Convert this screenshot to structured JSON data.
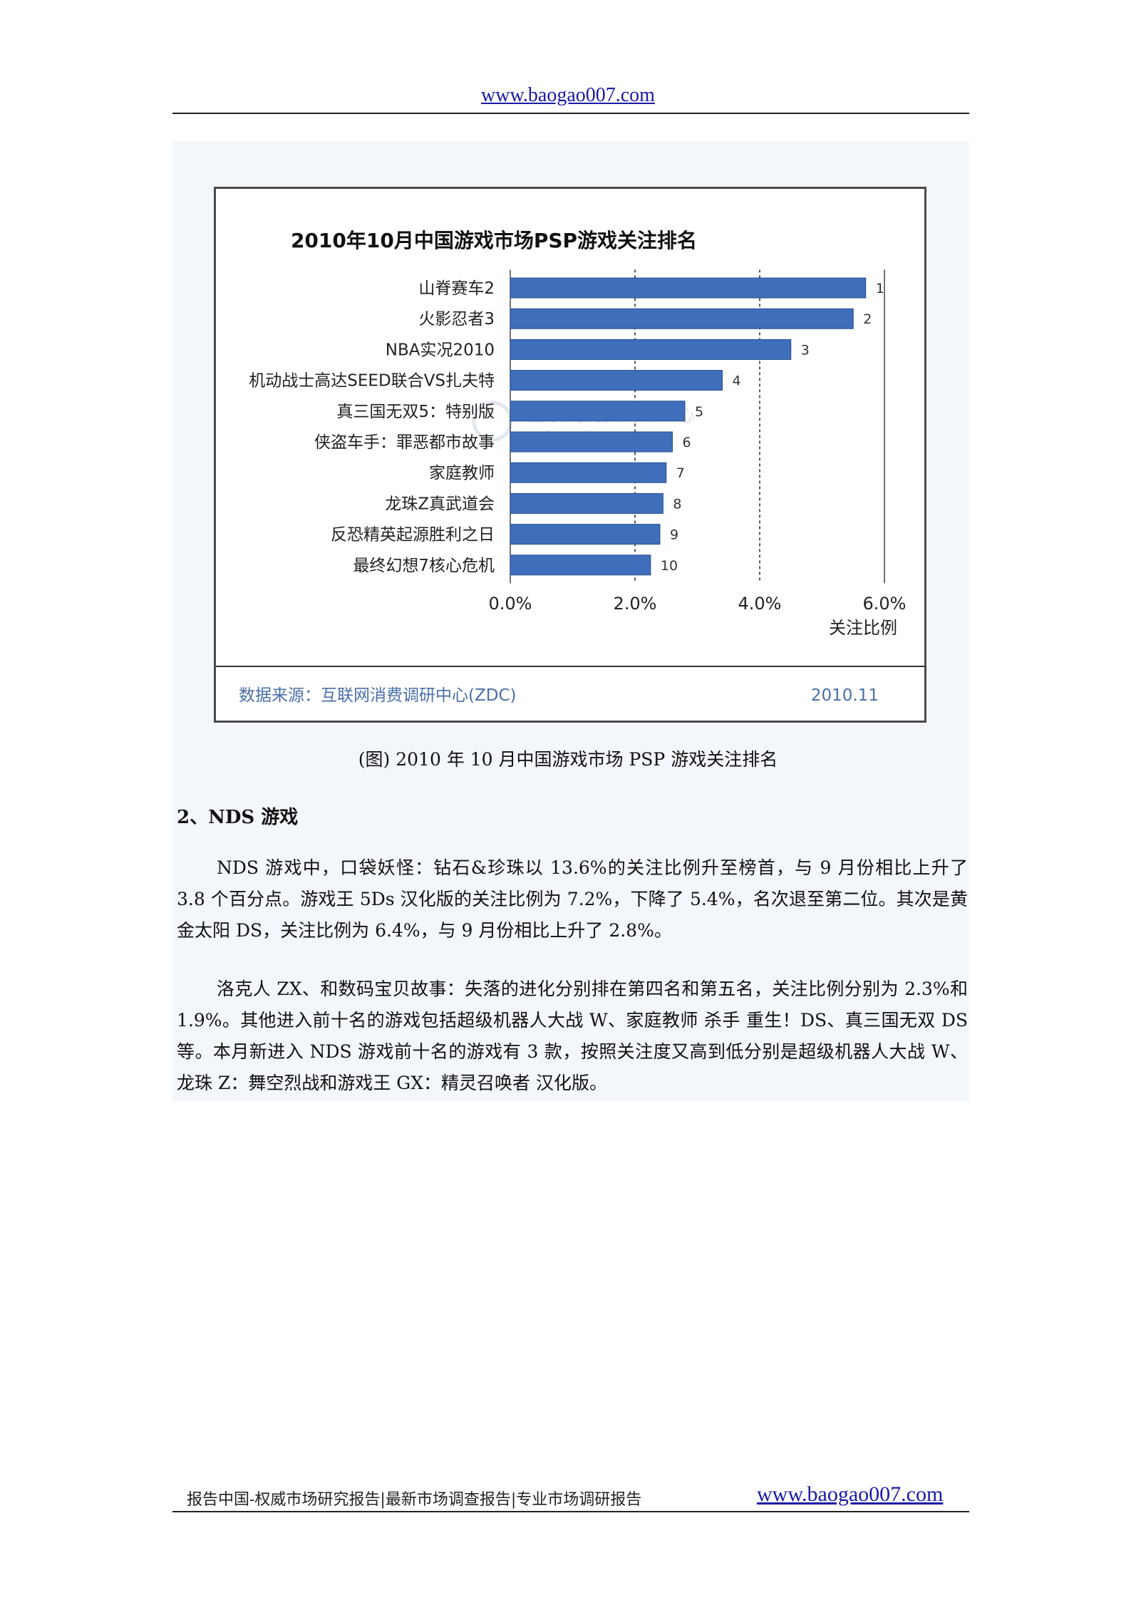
{
  "header": {
    "url": "www.baogao007.com"
  },
  "chart_data": {
    "type": "bar",
    "orientation": "horizontal",
    "title": "2010年10月中国游戏市场PSP游戏关注排名",
    "categories": [
      "山脊赛车2",
      "火影忍者3",
      "NBA实况2010",
      "机动战士高达SEED联合VS扎夫特",
      "真三国无双5：特别版",
      "侠盗车手：罪恶都市故事",
      "家庭教师",
      "龙珠Z真武道会",
      "反恐精英起源胜利之日",
      "最终幻想7核心危机"
    ],
    "values": [
      5.7,
      5.5,
      4.5,
      3.4,
      2.8,
      2.6,
      2.5,
      2.45,
      2.4,
      2.25
    ],
    "data_labels": [
      "1",
      "2",
      "3",
      "4",
      "5",
      "6",
      "7",
      "8",
      "9",
      "10"
    ],
    "xlabel": "关注比例",
    "xlim": [
      0,
      6
    ],
    "xticks": [
      "0.0%",
      "2.0%",
      "4.0%",
      "6.0%"
    ],
    "gridlines": "dashed vertical at 2.0% and 4.0%",
    "bar_color": "#3f6fba",
    "source": "数据来源：互联网消费调研中心(ZDC)",
    "date": "2010.11",
    "watermark": {
      "line1": "互联网消费调研中心",
      "line2": "zdc.zol.com.cn"
    }
  },
  "caption": "(图) 2010 年 10 月中国游戏市场 PSP 游戏关注排名",
  "section_heading": "2、NDS 游戏",
  "paragraphs": [
    "NDS 游戏中，口袋妖怪：钻石&珍珠以 13.6%的关注比例升至榜首，与 9 月份相比上升了 3.8 个百分点。游戏王 5Ds 汉化版的关注比例为 7.2%，下降了 5.4%，名次退至第二位。其次是黄金太阳 DS，关注比例为 6.4%，与 9 月份相比上升了 2.8%。",
    "洛克人 ZX、和数码宝贝故事：失落的进化分别排在第四名和第五名，关注比例分别为 2.3%和 1.9%。其他进入前十名的游戏包括超级机器人大战 W、家庭教师 杀手 重生！DS、真三国无双 DS 等。本月新进入 NDS 游戏前十名的游戏有 3 款，按照关注度又高到低分别是超级机器人大战 W、龙珠 Z：舞空烈战和游戏王 GX：精灵召唤者 汉化版。"
  ],
  "footer": {
    "text": "报告中国-权威市场研究报告|最新市场调查报告|专业市场调研报告",
    "url": "www.baogao007.com"
  }
}
